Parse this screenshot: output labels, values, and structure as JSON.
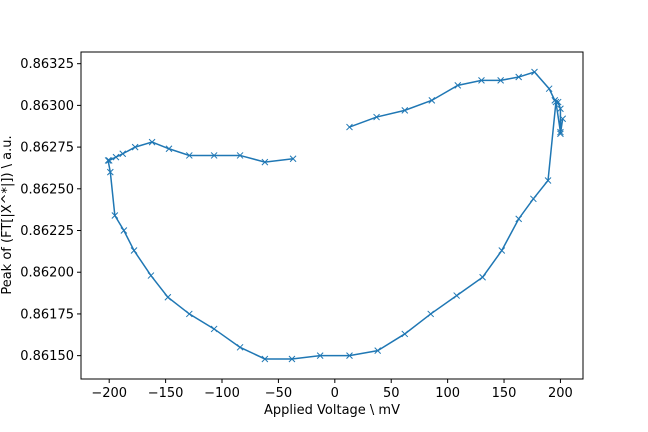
{
  "chart_data": {
    "type": "line",
    "xlabel": "Applied Voltage \\ mV",
    "ylabel": "Peak of (FT[|X^*|]) \\ a.u.",
    "xlim": [
      -225,
      220
    ],
    "ylim": [
      0.86136,
      0.86332
    ],
    "xticks": [
      -200,
      -150,
      -100,
      -50,
      0,
      50,
      100,
      150,
      200
    ],
    "xtick_labels": [
      "−200",
      "−150",
      "−100",
      "−50",
      "0",
      "50",
      "100",
      "150",
      "200"
    ],
    "yticks": [
      0.8615,
      0.86175,
      0.862,
      0.86225,
      0.8625,
      0.86275,
      0.863,
      0.86325
    ],
    "ytick_labels": [
      "0.86150",
      "0.86175",
      "0.86200",
      "0.86225",
      "0.86250",
      "0.86275",
      "0.86300",
      "0.86325"
    ],
    "grid": false,
    "marker": "x",
    "line_color": "#1f77b4",
    "series": [
      {
        "x": [
          13,
          37,
          62,
          86,
          109,
          130,
          147,
          163,
          177,
          190,
          195,
          198,
          200,
          200,
          202,
          200,
          196,
          189,
          176,
          163,
          148,
          131,
          108,
          85,
          62,
          38,
          13,
          -13,
          -38,
          -62,
          -84,
          -107,
          -129,
          -148,
          -163,
          -178,
          -187,
          -195,
          -199,
          -201,
          -200,
          -194,
          -188,
          -177,
          -162,
          -147,
          -129,
          -107,
          -84,
          -62,
          -37
        ],
        "y": [
          0.86287,
          0.86293,
          0.86297,
          0.86303,
          0.86312,
          0.86315,
          0.86315,
          0.86317,
          0.8632,
          0.8631,
          0.86303,
          0.86302,
          0.86298,
          0.86283,
          0.86292,
          0.86284,
          0.86302,
          0.86255,
          0.86244,
          0.86232,
          0.86213,
          0.86197,
          0.86186,
          0.86175,
          0.86163,
          0.86153,
          0.8615,
          0.8615,
          0.86148,
          0.86148,
          0.86155,
          0.86166,
          0.86175,
          0.86185,
          0.86198,
          0.86213,
          0.86225,
          0.86234,
          0.8626,
          0.86267,
          0.86267,
          0.86269,
          0.86271,
          0.86275,
          0.86278,
          0.86274,
          0.8627,
          0.8627,
          0.8627,
          0.86266,
          0.86268
        ]
      }
    ]
  }
}
